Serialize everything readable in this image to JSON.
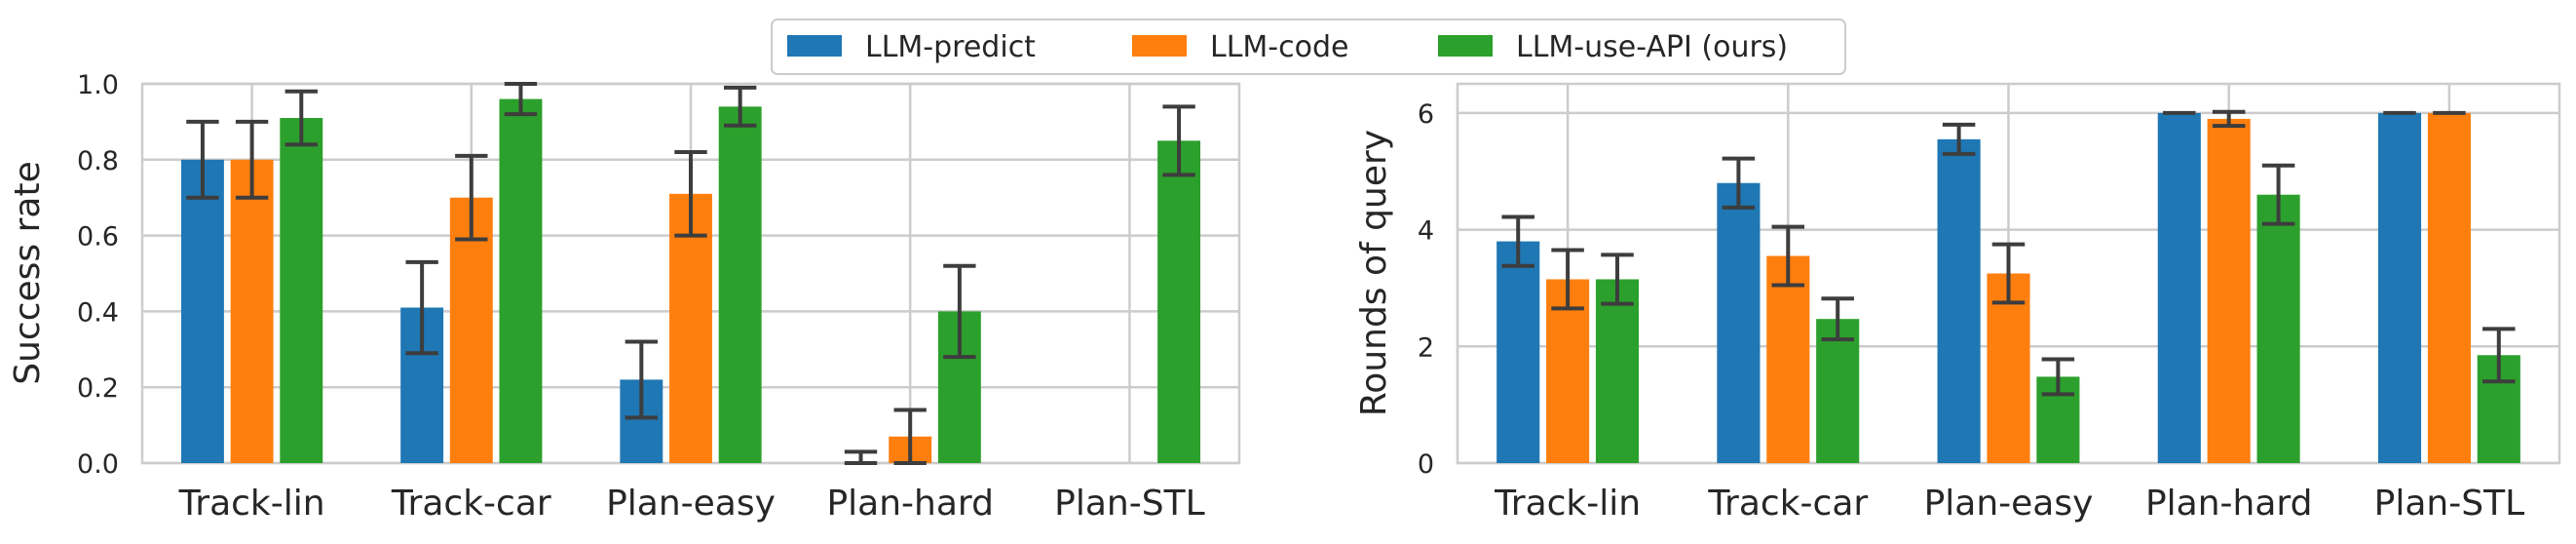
{
  "legend": {
    "items": [
      {
        "name": "LLM-predict",
        "color": "#1f77b4"
      },
      {
        "name": "LLM-code",
        "color": "#ff7f0e"
      },
      {
        "name": "LLM-use-API (ours)",
        "color": "#2ca02c"
      }
    ]
  },
  "chart_data": [
    {
      "type": "bar",
      "ylabel": "Success rate",
      "xlabel": "",
      "ylim": [
        0,
        1.0
      ],
      "yticks": [
        "0.0",
        "0.2",
        "0.4",
        "0.6",
        "0.8",
        "1.0"
      ],
      "grid": true,
      "legend_position": "top-center",
      "categories": [
        "Track-lin",
        "Track-car",
        "Plan-easy",
        "Plan-hard",
        "Plan-STL"
      ],
      "series": [
        {
          "name": "LLM-predict",
          "color": "#1f77b4",
          "values": [
            0.8,
            0.41,
            0.22,
            0.0,
            0.0
          ],
          "error": [
            0.1,
            0.12,
            0.1,
            0.03,
            null
          ]
        },
        {
          "name": "LLM-code",
          "color": "#ff7f0e",
          "values": [
            0.8,
            0.7,
            0.71,
            0.07,
            0.0
          ],
          "error": [
            0.1,
            0.11,
            0.11,
            0.07,
            null
          ]
        },
        {
          "name": "LLM-use-API (ours)",
          "color": "#2ca02c",
          "values": [
            0.91,
            0.96,
            0.94,
            0.4,
            0.85
          ],
          "error": [
            0.07,
            0.04,
            0.05,
            0.12,
            0.09
          ]
        }
      ]
    },
    {
      "type": "bar",
      "ylabel": "Rounds of query",
      "xlabel": "",
      "ylim": [
        0,
        6.5
      ],
      "yticks": [
        "0",
        "2",
        "4",
        "6"
      ],
      "grid": true,
      "categories": [
        "Track-lin",
        "Track-car",
        "Plan-easy",
        "Plan-hard",
        "Plan-STL"
      ],
      "series": [
        {
          "name": "LLM-predict",
          "color": "#1f77b4",
          "values": [
            3.8,
            4.8,
            5.55,
            6.0,
            6.0
          ],
          "error": [
            0.42,
            0.42,
            0.25,
            0.0,
            0.0
          ]
        },
        {
          "name": "LLM-code",
          "color": "#ff7f0e",
          "values": [
            3.15,
            3.55,
            3.25,
            5.9,
            6.0
          ],
          "error": [
            0.5,
            0.5,
            0.5,
            0.12,
            0.0
          ]
        },
        {
          "name": "LLM-use-API (ours)",
          "color": "#2ca02c",
          "values": [
            3.15,
            2.47,
            1.48,
            4.6,
            1.85
          ],
          "error": [
            0.42,
            0.35,
            0.3,
            0.5,
            0.45
          ]
        }
      ]
    }
  ]
}
